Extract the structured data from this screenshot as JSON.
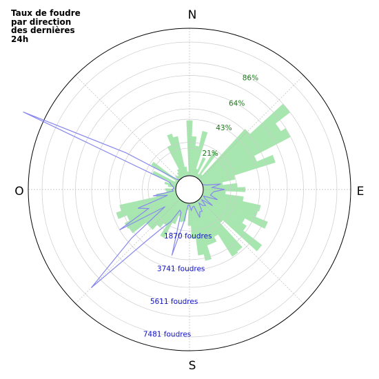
{
  "chart_data": {
    "type": "polar-bar",
    "title": "Taux de foudre\npar direction\ndes dernières\n24h",
    "cardinals": {
      "north": "N",
      "east": "E",
      "south": "S",
      "west": "O"
    },
    "rate_rings": {
      "values": [
        21,
        43,
        64,
        86
      ],
      "labels": [
        "21%",
        "43%",
        "64%",
        "86%"
      ],
      "max": 86,
      "color": "#1a7a1a"
    },
    "count_rings": {
      "values": [
        1870,
        3741,
        5611,
        7481
      ],
      "labels": [
        "1870 foudres",
        "3741 foudres",
        "5611 foudres",
        "7481 foudres"
      ],
      "max": 7481,
      "color": "#1010cc"
    },
    "series": [
      {
        "kind": "rate_bars",
        "color": "#a8e6b0",
        "unit": "%",
        "angles_deg": [
          5,
          10,
          15,
          20,
          25,
          30,
          35,
          40,
          45,
          50,
          55,
          60,
          65,
          70,
          75,
          80,
          85,
          90,
          95,
          100,
          105,
          110,
          115,
          120,
          125,
          130,
          135,
          140,
          145,
          150,
          155,
          160,
          165,
          170,
          175,
          180,
          185,
          190,
          195,
          200,
          205,
          210,
          215,
          220,
          225,
          230,
          235,
          240,
          245,
          250,
          255,
          260,
          265,
          270,
          275,
          280,
          285,
          290,
          295,
          300,
          305,
          310,
          315,
          320,
          325,
          330,
          335,
          340,
          345,
          350,
          355,
          360
        ],
        "values": [
          30,
          23,
          35,
          6,
          16,
          3,
          24,
          4,
          52,
          86,
          72,
          76,
          45,
          58,
          25,
          15,
          26,
          32,
          17,
          31,
          45,
          44,
          54,
          37,
          41,
          59,
          24,
          49,
          50,
          30,
          34,
          34,
          45,
          40,
          27,
          17,
          5,
          14,
          15,
          11,
          18,
          31,
          22,
          26,
          31,
          31,
          44,
          45,
          41,
          48,
          44,
          15,
          7,
          8,
          2,
          6,
          9,
          6,
          20,
          2,
          24,
          2,
          4,
          3,
          5,
          7,
          26,
          34,
          31,
          7,
          3,
          42
        ]
      },
      {
        "kind": "count_line",
        "color": "#8888ee",
        "unit": "foudres",
        "angles_deg": [
          0,
          5,
          10,
          15,
          20,
          25,
          30,
          35,
          40,
          45,
          50,
          55,
          60,
          65,
          70,
          75,
          80,
          85,
          90,
          95,
          100,
          105,
          110,
          115,
          120,
          125,
          130,
          135,
          140,
          145,
          150,
          155,
          160,
          165,
          170,
          175,
          180,
          185,
          190,
          195,
          200,
          205,
          210,
          215,
          220,
          225,
          230,
          235,
          240,
          245,
          250,
          255,
          260,
          265,
          270,
          275,
          280,
          285,
          290,
          295,
          300,
          305,
          310,
          315,
          320,
          325,
          330,
          335,
          340,
          345,
          350,
          355
        ],
        "values": [
          0,
          0,
          0,
          0,
          0,
          0,
          0,
          0,
          0,
          0,
          0,
          0,
          0,
          0,
          20,
          200,
          1000,
          500,
          1200,
          600,
          500,
          450,
          900,
          100,
          220,
          800,
          100,
          500,
          400,
          150,
          640,
          600,
          900,
          200,
          220,
          400,
          100,
          100,
          1100,
          3050,
          600,
          500,
          1300,
          1800,
          3000,
          7000,
          3450,
          900,
          3750,
          1750,
          2300,
          500,
          1300,
          150,
          200,
          100,
          150,
          300,
          400,
          9500,
          3350,
          600,
          100,
          0,
          0,
          0,
          0,
          0,
          0,
          0,
          0,
          0
        ]
      }
    ]
  }
}
